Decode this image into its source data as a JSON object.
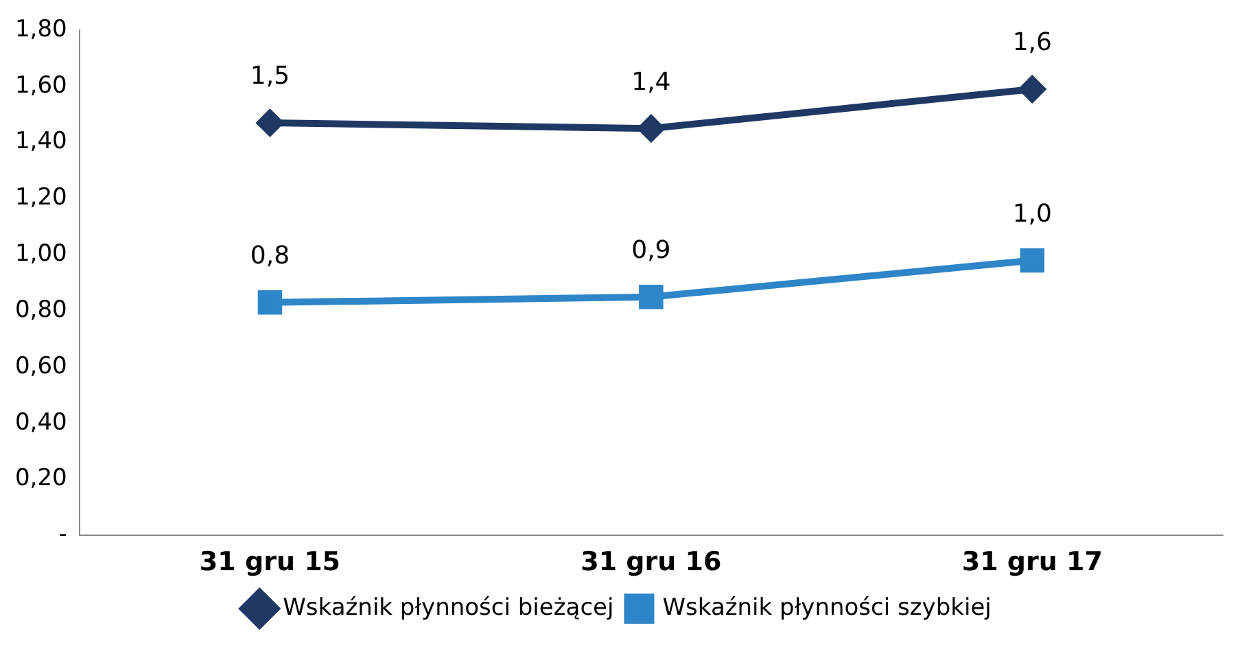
{
  "chart_data": {
    "type": "line",
    "categories": [
      "31 gru 15",
      "31 gru 16",
      "31 gru 17"
    ],
    "series": [
      {
        "name": "Wskaźnik płynności bieżącej",
        "color": "#1f3864",
        "marker": "diamond",
        "values": [
          1.47,
          1.45,
          1.59
        ],
        "value_labels": [
          "1,5",
          "1,4",
          "1,6"
        ]
      },
      {
        "name": "Wskaźnik płynności szybkiej",
        "color": "#2e86c8",
        "marker": "square",
        "values": [
          0.83,
          0.85,
          0.98
        ],
        "value_labels": [
          "0,8",
          "0,9",
          "1,0"
        ]
      }
    ],
    "ylim": [
      0,
      1.8
    ],
    "yticks": [
      {
        "value": 0,
        "label": "-"
      },
      {
        "value": 0.2,
        "label": "0,20"
      },
      {
        "value": 0.4,
        "label": "0,40"
      },
      {
        "value": 0.6,
        "label": "0,60"
      },
      {
        "value": 0.8,
        "label": "0,80"
      },
      {
        "value": 1,
        "label": "1,00"
      },
      {
        "value": 1.2,
        "label": "1,20"
      },
      {
        "value": 1.4,
        "label": "1,40"
      },
      {
        "value": 1.6,
        "label": "1,60"
      },
      {
        "value": 1.8,
        "label": "1,80"
      }
    ],
    "grid": false,
    "legend": "bottom",
    "line_style": "solid"
  }
}
